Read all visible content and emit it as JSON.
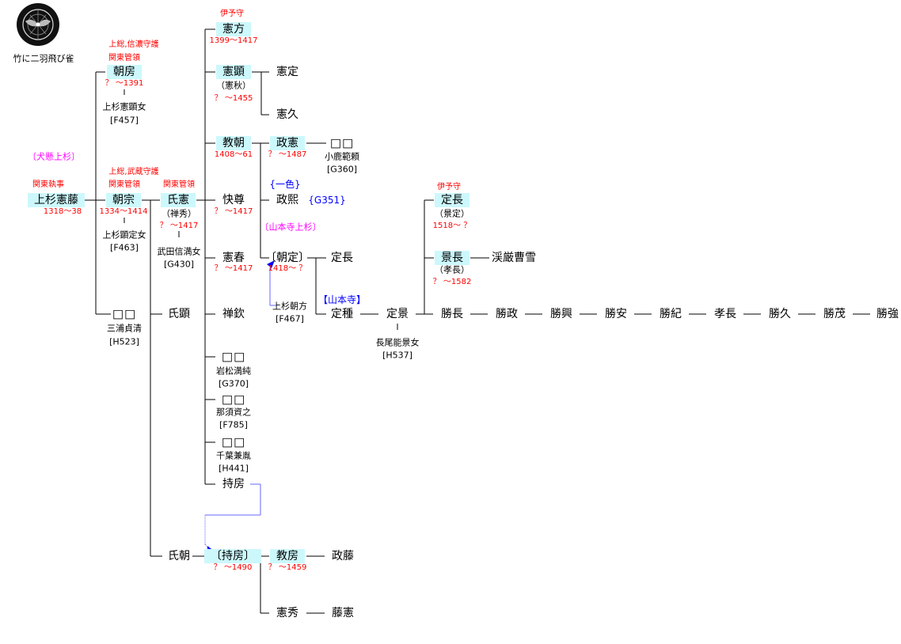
{
  "crest": {
    "caption": "竹に二羽飛び雀",
    "icon": "family-crest-bamboo-two-sparrows"
  },
  "labels": {
    "inukake": "〔犬懸上杉〕",
    "yamamotodera_uesugi": "〔山本寺上杉〕",
    "yamamotodera": "【山本寺】",
    "isshiki": "{一色}",
    "g351": "{G351}"
  },
  "colors": {
    "highlight": "#ccf8fc",
    "dates": "#ff0000",
    "branch": "#ff00ff",
    "note": "#0000ff",
    "adoption_arrow": "#6666ff"
  },
  "nodes": {
    "norifuji": {
      "name": "上杉憲藤",
      "title": "関東執事",
      "dates": "1318～38"
    },
    "tomofusa": {
      "name": "朝房",
      "title1": "上総,信濃守護",
      "title2": "関東管領",
      "dates": "？ ～1391",
      "spouse": "上杉憲顕女",
      "spouse_ref": "[F457]"
    },
    "tomomune": {
      "name": "朝宗",
      "title1": "上総,武蔵守護",
      "title2": "関東管領",
      "dates": "1334～1414",
      "spouse": "上杉顕定女",
      "spouse_ref": "[F463]"
    },
    "daughter1": {
      "name": "□□",
      "spouse": "三浦貞清",
      "spouse_ref": "[H523]"
    },
    "ujinori": {
      "name": "氏憲",
      "title": "関東管領",
      "alias": "（禅秀）",
      "dates": "？ ～1417",
      "spouse": "武田信満女",
      "spouse_ref": "[G430]"
    },
    "ujiaki": {
      "name": "氏顕"
    },
    "ujitomo": {
      "name": "氏朝"
    },
    "norikata": {
      "name": "憲方",
      "title": "伊予守",
      "dates": "1399～1417"
    },
    "noriaki": {
      "name": "憲顕",
      "alias": "（憲秋）",
      "dates": "？ ～1455"
    },
    "norisada": {
      "name": "憲定"
    },
    "norihisa": {
      "name": "憲久"
    },
    "noritomo": {
      "name": "教朝",
      "dates": "1408～61"
    },
    "masanori": {
      "name": "政憲",
      "dates": "？ ～1487"
    },
    "daughter2": {
      "name": "□□",
      "spouse": "小鹿範頼",
      "spouse_ref": "[G360]"
    },
    "masahiro": {
      "name": "政熙"
    },
    "kaison": {
      "name": "快尊",
      "dates": "？ ～1417"
    },
    "noriharu": {
      "name": "憲春",
      "dates": "？ ～1417"
    },
    "tomosada": {
      "name": "〔朝定〕",
      "dates": "1418～ ？",
      "father": "上杉朝方",
      "father_ref": "[F467]"
    },
    "sadanaga1": {
      "name": "定長"
    },
    "sadatane": {
      "name": "定種"
    },
    "sadakage": {
      "name": "定景",
      "spouse": "長尾能景女",
      "spouse_ref": "[H537]"
    },
    "zenkin": {
      "name": "禅欽"
    },
    "daughter3": {
      "name": "□□",
      "spouse": "岩松満純",
      "spouse_ref": "[G370]"
    },
    "daughter4": {
      "name": "□□",
      "spouse": "那須資之",
      "spouse_ref": "[F785]"
    },
    "daughter5": {
      "name": "□□",
      "spouse": "千葉兼胤",
      "spouse_ref": "[H441]"
    },
    "mochifusa": {
      "name": "持房"
    },
    "mochifusa2": {
      "name": "〔持房〕",
      "dates": "？ ～1490"
    },
    "norifusa": {
      "name": "教房",
      "dates": "？ ～1459"
    },
    "masafuji": {
      "name": "政藤"
    },
    "norihide": {
      "name": "憲秀"
    },
    "fujinori": {
      "name": "藤憲"
    },
    "sadanaga2": {
      "name": "定長",
      "title": "伊予守",
      "alias": "（景定）",
      "dates": "1518～ ？"
    },
    "kagenaga": {
      "name": "景長",
      "alias": "（孝長）",
      "dates": "？ ～1582"
    },
    "keigen": {
      "name": "渓厳曹雪"
    },
    "katsunaga": {
      "name": "勝長"
    },
    "katsumasa": {
      "name": "勝政"
    },
    "katsuoki": {
      "name": "勝興"
    },
    "katsuyasu": {
      "name": "勝安"
    },
    "katsunori": {
      "name": "勝紀"
    },
    "takanaga": {
      "name": "孝長"
    },
    "katsuhisa": {
      "name": "勝久"
    },
    "katsushige": {
      "name": "勝茂"
    },
    "katsutsuyo": {
      "name": "勝強"
    }
  }
}
